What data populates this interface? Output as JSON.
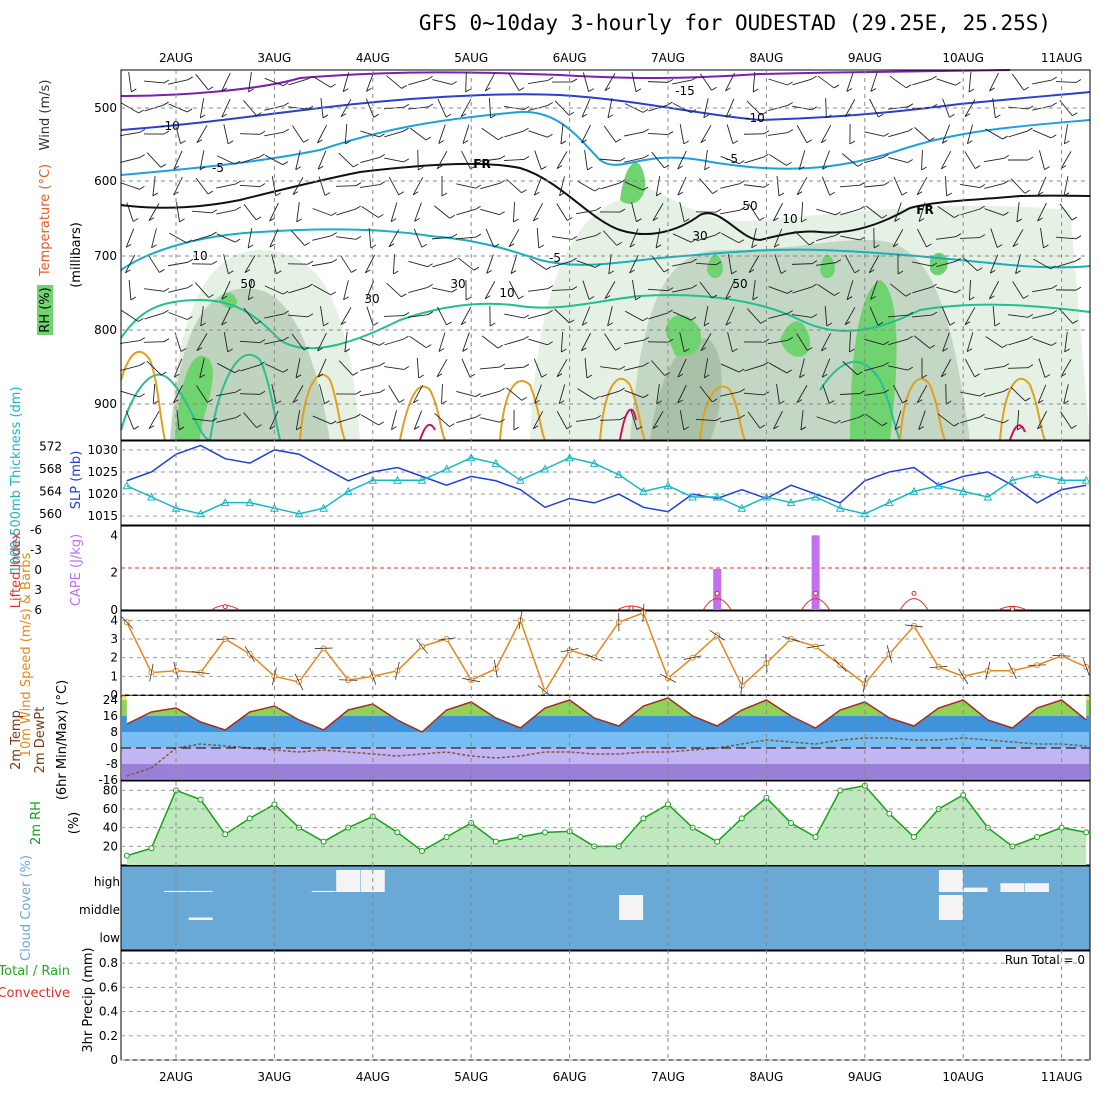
{
  "title": "GFS 0~10day 3-hourly for OUDESTAD (29.25E, 25.25S)",
  "colors": {
    "wind": "#1f3fd6",
    "temperature": "#e25a2a",
    "rh": "#22aa22",
    "thickness": "#16b8c4",
    "slp": "#1f3fd6",
    "lifted": "#e0302a",
    "cape": "#c070f0",
    "wind10": "#e8871a",
    "cloud": "#6aa8d6",
    "rh2m": "#18a018",
    "rain": "#22aa22",
    "convective": "#e0302a"
  },
  "days": [
    "2AUG",
    "3AUG",
    "4AUG",
    "5AUG",
    "6AUG",
    "7AUG",
    "8AUG",
    "9AUG",
    "10AUG",
    "11AUG"
  ],
  "run_total": "Run Total = 0",
  "panels": {
    "upper": {
      "labels": [
        "RH (%)",
        "Temperature (°C)",
        "Wind (m/s)",
        "(millibars)"
      ],
      "pressure_ticks": [
        "500",
        "600",
        "700",
        "800",
        "900"
      ],
      "contour_labels": [
        "-15",
        "-10",
        "-10",
        "-5",
        "-5",
        "-5",
        "5",
        "FR",
        "FR",
        "10",
        "50",
        "50",
        "30",
        "30",
        "10",
        "10",
        "30",
        "50"
      ]
    },
    "slp": {
      "labels": [
        "1000-500mb Thickness (dm)",
        "SLP (mb)"
      ],
      "left_ticks": [
        "572",
        "568",
        "564",
        "560"
      ],
      "right_ticks": [
        "1030",
        "1025",
        "1020",
        "1015"
      ]
    },
    "cape": {
      "labels": [
        "Lifted Index",
        "CAPE (J/kg)"
      ],
      "left_ticks": [
        "-6",
        "-3",
        "0",
        "3",
        "6"
      ],
      "right_ticks": [
        "4",
        "2",
        "0"
      ]
    },
    "wind10": {
      "labels": [
        "10m Wind Speed (m/s) & Barbs"
      ],
      "ticks": [
        "4",
        "3",
        "2",
        "1",
        "0"
      ]
    },
    "temp2m": {
      "labels": [
        "2m Temp",
        "2m DewPt",
        "(6hr Min/Max) (°C)"
      ],
      "ticks": [
        "24",
        "16",
        "8",
        "0",
        "-8",
        "-16"
      ]
    },
    "rh2m": {
      "labels": [
        "2m RH",
        "(%)"
      ],
      "ticks": [
        "80",
        "60",
        "40",
        "20"
      ]
    },
    "cloud": {
      "labels": [
        "Cloud Cover (%)"
      ],
      "ticks": [
        "high",
        "middle",
        "low"
      ]
    },
    "precip": {
      "labels": [
        "Total / Rain",
        "Convective",
        "3hr Precip (mm)"
      ],
      "ticks": [
        "0.8",
        "0.6",
        "0.4",
        "0.2",
        "0"
      ]
    }
  },
  "chart_data": [
    {
      "type": "line",
      "title": "GFS 0~10day 3-hourly for OUDESTAD (29.25E, 25.25S)",
      "x": [
        "1AUG12",
        "1AUG18",
        "2AUG00",
        "2AUG06",
        "2AUG12",
        "2AUG18",
        "3AUG00",
        "3AUG06",
        "3AUG12",
        "3AUG18",
        "4AUG00",
        "4AUG06",
        "4AUG12",
        "4AUG18",
        "5AUG00",
        "5AUG06",
        "5AUG12",
        "5AUG18",
        "6AUG00",
        "6AUG06",
        "6AUG12",
        "6AUG18",
        "7AUG00",
        "7AUG06",
        "7AUG12",
        "7AUG18",
        "8AUG00",
        "8AUG06",
        "8AUG12",
        "8AUG18",
        "9AUG00",
        "9AUG06",
        "9AUG12",
        "9AUG18",
        "10AUG00",
        "10AUG06",
        "10AUG12",
        "10AUG18",
        "11AUG00",
        "11AUG06"
      ],
      "series": [
        {
          "name": "SLP (mb)",
          "values": [
            1023,
            1025,
            1029,
            1031,
            1028,
            1027,
            1030,
            1029,
            1026,
            1023,
            1025,
            1026,
            1024,
            1022,
            1024,
            1023,
            1021,
            1017,
            1019,
            1018,
            1020,
            1017,
            1016,
            1020,
            1019,
            1021,
            1019,
            1022,
            1020,
            1018,
            1023,
            1025,
            1026,
            1022,
            1024,
            1025,
            1022,
            1018,
            1021,
            1022
          ]
        },
        {
          "name": "1000-500mb Thickness (dm)",
          "values": [
            565,
            563,
            561,
            560,
            562,
            562,
            561,
            560,
            561,
            564,
            566,
            566,
            566,
            568,
            570,
            569,
            566,
            568,
            570,
            569,
            567,
            564,
            565,
            563,
            563,
            561,
            563,
            562,
            563,
            561,
            560,
            562,
            564,
            565,
            564,
            563,
            566,
            567,
            566,
            566
          ]
        }
      ],
      "ylim_left": [
        558,
        573
      ],
      "ylim_right": [
        1013,
        1032
      ]
    },
    {
      "type": "bar",
      "x": [
        "7AUG12",
        "8AUG12"
      ],
      "series": [
        {
          "name": "CAPE (J/kg)",
          "values": [
            2.2,
            4.0
          ]
        }
      ],
      "ylim": [
        0,
        4.5
      ]
    },
    {
      "type": "line",
      "x": [
        "2AUG12",
        "6AUG15",
        "7AUG12",
        "8AUG12",
        "9AUG12",
        "10AUG12"
      ],
      "series": [
        {
          "name": "Lifted Index",
          "values": [
            5.5,
            5.7,
            3.5,
            3.5,
            3.5,
            5.8
          ]
        }
      ],
      "ylim": [
        -6,
        6
      ]
    },
    {
      "type": "line",
      "x": [
        "1AUG12",
        "1AUG18",
        "2AUG00",
        "2AUG06",
        "2AUG12",
        "2AUG18",
        "3AUG00",
        "3AUG06",
        "3AUG12",
        "3AUG18",
        "4AUG00",
        "4AUG06",
        "4AUG12",
        "4AUG18",
        "5AUG00",
        "5AUG06",
        "5AUG12",
        "5AUG18",
        "6AUG00",
        "6AUG06",
        "6AUG12",
        "6AUG18",
        "7AUG00",
        "7AUG06",
        "7AUG12",
        "7AUG18",
        "8AUG00",
        "8AUG06",
        "8AUG12",
        "8AUG18",
        "9AUG00",
        "9AUG06",
        "9AUG12",
        "9AUG18",
        "10AUG00",
        "10AUG06",
        "10AUG12",
        "10AUG18",
        "11AUG00",
        "11AUG06"
      ],
      "series": [
        {
          "name": "10m Wind Speed (m/s)",
          "values": [
            3.9,
            1.2,
            1.3,
            1.2,
            3.0,
            2.2,
            1.0,
            0.7,
            2.5,
            0.8,
            1.0,
            1.3,
            2.6,
            3.0,
            0.8,
            1.4,
            4.0,
            0.2,
            2.4,
            2.0,
            3.9,
            4.4,
            0.9,
            2.0,
            3.2,
            0.5,
            1.7,
            3.0,
            2.6,
            1.6,
            0.6,
            2.2,
            3.7,
            1.5,
            1.0,
            1.3,
            1.3,
            1.6,
            2.1,
            1.5
          ]
        }
      ],
      "ylim": [
        0,
        4.5
      ]
    },
    {
      "type": "area",
      "x": [
        "1AUG12",
        "1AUG18",
        "2AUG00",
        "2AUG06",
        "2AUG12",
        "2AUG18",
        "3AUG00",
        "3AUG06",
        "3AUG12",
        "3AUG18",
        "4AUG00",
        "4AUG06",
        "4AUG12",
        "4AUG18",
        "5AUG00",
        "5AUG06",
        "5AUG12",
        "5AUG18",
        "6AUG00",
        "6AUG06",
        "6AUG12",
        "6AUG18",
        "7AUG00",
        "7AUG06",
        "7AUG12",
        "7AUG18",
        "8AUG00",
        "8AUG06",
        "8AUG12",
        "8AUG18",
        "9AUG00",
        "9AUG06",
        "9AUG12",
        "9AUG18",
        "10AUG00",
        "10AUG06",
        "10AUG12",
        "10AUG18",
        "11AUG00",
        "11AUG06"
      ],
      "series": [
        {
          "name": "2m Temp",
          "values": [
            12,
            18,
            20,
            13,
            9,
            18,
            21,
            14,
            9,
            19,
            22,
            14,
            8,
            19,
            23,
            15,
            10,
            20,
            24,
            15,
            11,
            21,
            25,
            16,
            11,
            19,
            24,
            16,
            10,
            19,
            23,
            15,
            11,
            20,
            24,
            14,
            10,
            20,
            24,
            14
          ]
        },
        {
          "name": "2m DewPt",
          "values": [
            -14,
            -10,
            0,
            2,
            1,
            0,
            -1,
            -2,
            -1,
            -2,
            -3,
            -4,
            -3,
            -2,
            -4,
            -5,
            -4,
            -2,
            -2,
            -3,
            -3,
            -2,
            -2,
            -1,
            0,
            2,
            4,
            3,
            2,
            4,
            5,
            5,
            4,
            4,
            5,
            4,
            3,
            2,
            2,
            1
          ]
        }
      ],
      "ylim": [
        -16,
        26
      ]
    },
    {
      "type": "area",
      "x": [
        "1AUG12",
        "1AUG18",
        "2AUG00",
        "2AUG06",
        "2AUG12",
        "2AUG18",
        "3AUG00",
        "3AUG06",
        "3AUG12",
        "3AUG18",
        "4AUG00",
        "4AUG06",
        "4AUG12",
        "4AUG18",
        "5AUG00",
        "5AUG06",
        "5AUG12",
        "5AUG18",
        "6AUG00",
        "6AUG06",
        "6AUG12",
        "6AUG18",
        "7AUG00",
        "7AUG06",
        "7AUG12",
        "7AUG18",
        "8AUG00",
        "8AUG06",
        "8AUG12",
        "8AUG18",
        "9AUG00",
        "9AUG06",
        "9AUG12",
        "9AUG18",
        "10AUG00",
        "10AUG06",
        "10AUG12",
        "10AUG18",
        "11AUG00",
        "11AUG06"
      ],
      "series": [
        {
          "name": "2m RH (%)",
          "values": [
            10,
            18,
            80,
            70,
            33,
            50,
            65,
            40,
            25,
            40,
            52,
            35,
            15,
            30,
            45,
            25,
            30,
            35,
            36,
            20,
            20,
            50,
            65,
            40,
            25,
            50,
            72,
            45,
            30,
            80,
            85,
            55,
            30,
            60,
            75,
            40,
            20,
            30,
            40,
            35
          ]
        }
      ],
      "ylim": [
        0,
        90
      ]
    },
    {
      "type": "bar",
      "x": [
        "2AUG00",
        "2AUG06",
        "3AUG12",
        "3AUG18",
        "4AUG00",
        "6AUG15",
        "9AUG21",
        "10AUG03",
        "10AUG12",
        "10AUG18"
      ],
      "series": [
        {
          "name": "high",
          "values": [
            5,
            5,
            5,
            100,
            100,
            0,
            100,
            20,
            40,
            40
          ]
        },
        {
          "name": "middle",
          "values": [
            0,
            10,
            0,
            0,
            0,
            100,
            100,
            0,
            0,
            0
          ]
        },
        {
          "name": "low",
          "values": [
            0,
            0,
            0,
            0,
            0,
            0,
            0,
            0,
            0,
            0
          ]
        }
      ],
      "ylim": [
        0,
        100
      ]
    },
    {
      "type": "bar",
      "x": [],
      "series": [
        {
          "name": "3hr Precip (mm)",
          "values": []
        }
      ],
      "ylim": [
        0,
        0.9
      ]
    }
  ]
}
